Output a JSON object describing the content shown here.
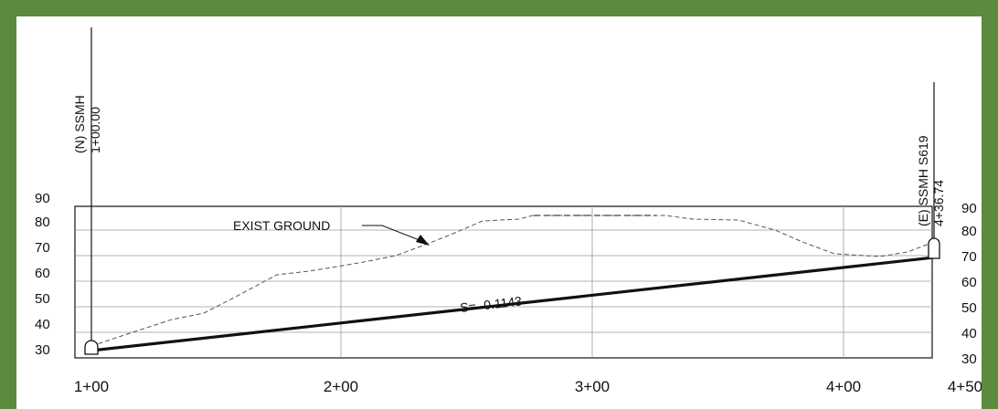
{
  "colors": {
    "border": "#5c8a3e",
    "paper": "#ffffff",
    "ink": "#111111",
    "grid": "#9a9a9a"
  },
  "elevation_axis": {
    "left_ticks": [
      "90",
      "80",
      "70",
      "60",
      "50",
      "40",
      "30"
    ],
    "right_ticks": [
      "90",
      "80",
      "70",
      "60",
      "50",
      "40",
      "30"
    ]
  },
  "station_axis": {
    "labels": [
      "1+00",
      "2+00",
      "3+00",
      "4+00",
      "4+50"
    ]
  },
  "structures": {
    "start": {
      "name": "(N) SSMH",
      "station": "1+00.00"
    },
    "end": {
      "name": "(E) SSMH S619",
      "station": "4+36.74"
    }
  },
  "labels": {
    "existing_ground": "EXIST GROUND",
    "slope": "S= -0.1143"
  }
}
